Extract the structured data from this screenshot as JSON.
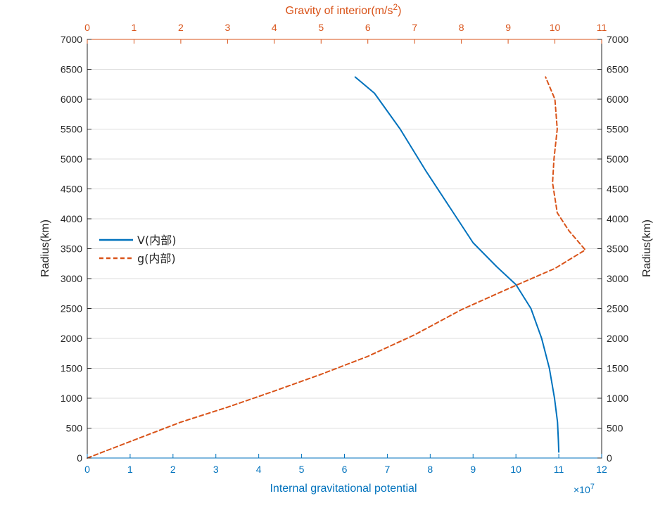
{
  "chart_data": {
    "type": "line",
    "colors": {
      "V": "#0072bd",
      "g": "#d95319",
      "left_axis": "#262626",
      "grid": "#dcdcdc"
    },
    "bottom_axis": {
      "label": "Internal gravitational potential",
      "range": [
        0,
        12
      ],
      "ticks": [
        "0",
        "1",
        "2",
        "3",
        "4",
        "5",
        "6",
        "7",
        "8",
        "9",
        "10",
        "11",
        "12"
      ],
      "exponent": "×10",
      "exponent_power": "7"
    },
    "top_axis": {
      "label": "Gravity of interior(m/s",
      "label_sup": "2",
      "label_close": ")",
      "range": [
        0,
        11
      ],
      "ticks": [
        "0",
        "1",
        "2",
        "3",
        "4",
        "5",
        "6",
        "7",
        "8",
        "9",
        "10",
        "11"
      ]
    },
    "left_axis": {
      "label": "Radius(km)",
      "range": [
        0,
        7000
      ],
      "ticks": [
        "0",
        "500",
        "1000",
        "1500",
        "2000",
        "2500",
        "3000",
        "3500",
        "4000",
        "4500",
        "5000",
        "5500",
        "6000",
        "6500",
        "7000"
      ]
    },
    "right_axis": {
      "label": "Radius(km)",
      "range": [
        0,
        7000
      ],
      "ticks": [
        "0",
        "500",
        "1000",
        "1500",
        "2000",
        "2500",
        "3000",
        "3500",
        "4000",
        "4500",
        "5000",
        "5500",
        "6000",
        "6500",
        "7000"
      ]
    },
    "grid": true,
    "legend_position": "left",
    "series": [
      {
        "name": "V(内部)",
        "x_axis": "bottom",
        "style": "solid",
        "points": [
          [
            11.0,
            100
          ],
          [
            10.99,
            300
          ],
          [
            10.97,
            600
          ],
          [
            10.9,
            1000
          ],
          [
            10.78,
            1500
          ],
          [
            10.6,
            2000
          ],
          [
            10.35,
            2500
          ],
          [
            10.0,
            2900
          ],
          [
            9.55,
            3200
          ],
          [
            9.0,
            3600
          ],
          [
            8.45,
            4200
          ],
          [
            7.9,
            4800
          ],
          [
            7.3,
            5500
          ],
          [
            6.7,
            6100
          ],
          [
            6.25,
            6371
          ]
        ]
      },
      {
        "name": "g(内部)",
        "x_axis": "top",
        "style": "dashed",
        "points": [
          [
            0,
            0
          ],
          [
            0.5,
            150
          ],
          [
            1.0,
            300
          ],
          [
            2.0,
            600
          ],
          [
            3.0,
            850
          ],
          [
            4.0,
            1120
          ],
          [
            5.0,
            1400
          ],
          [
            6.0,
            1700
          ],
          [
            7.0,
            2060
          ],
          [
            8.0,
            2480
          ],
          [
            9.0,
            2830
          ],
          [
            10.0,
            3170
          ],
          [
            10.65,
            3480
          ],
          [
            10.3,
            3800
          ],
          [
            10.05,
            4100
          ],
          [
            9.95,
            4600
          ],
          [
            9.98,
            5000
          ],
          [
            10.05,
            5500
          ],
          [
            10.0,
            6000
          ],
          [
            9.8,
            6371
          ]
        ]
      }
    ]
  }
}
